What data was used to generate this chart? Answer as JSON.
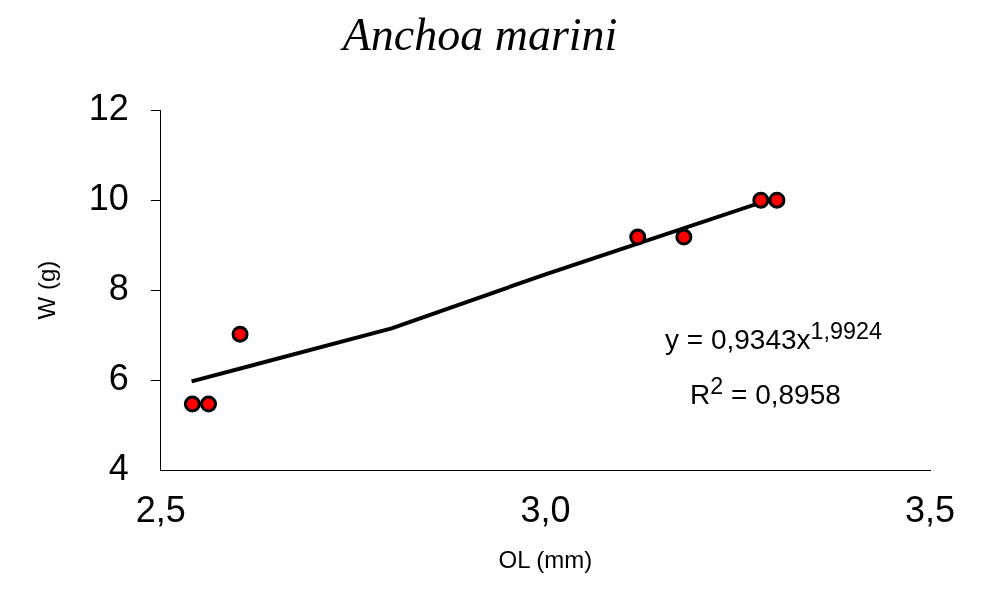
{
  "chart_data": {
    "type": "scatter",
    "title": "Anchoa marini",
    "xlabel": "OL (mm)",
    "ylabel": "W (g)",
    "xlim": [
      2.5,
      3.5
    ],
    "xticks": [
      {
        "value": 2.5,
        "label": "2,5"
      },
      {
        "value": 3.0,
        "label": "3,0"
      },
      {
        "value": 3.5,
        "label": "3,5"
      }
    ],
    "ylim": [
      4,
      12
    ],
    "yticks": [
      4,
      6,
      8,
      10,
      12
    ],
    "grid": false,
    "legend": false,
    "marker": "circle",
    "series": [
      {
        "color": "#ff0000",
        "x": [
          2.541,
          2.562,
          2.603,
          3.12,
          3.18,
          3.28,
          3.301
        ],
        "values": [
          5.47,
          5.47,
          7.02,
          9.18,
          9.18,
          10.0,
          10.0
        ]
      },
      {
        "type": "line",
        "color": "#000000",
        "marker": "none",
        "line_style": "solid",
        "x": [
          2.54,
          2.8,
          3.0,
          3.3
        ],
        "values": [
          5.97,
          7.15,
          8.35,
          10.06
        ]
      }
    ],
    "annotations": [
      "y = 0,9343x$^{1,9924}$",
      "R$^{2}$ = 0,8958"
    ]
  }
}
